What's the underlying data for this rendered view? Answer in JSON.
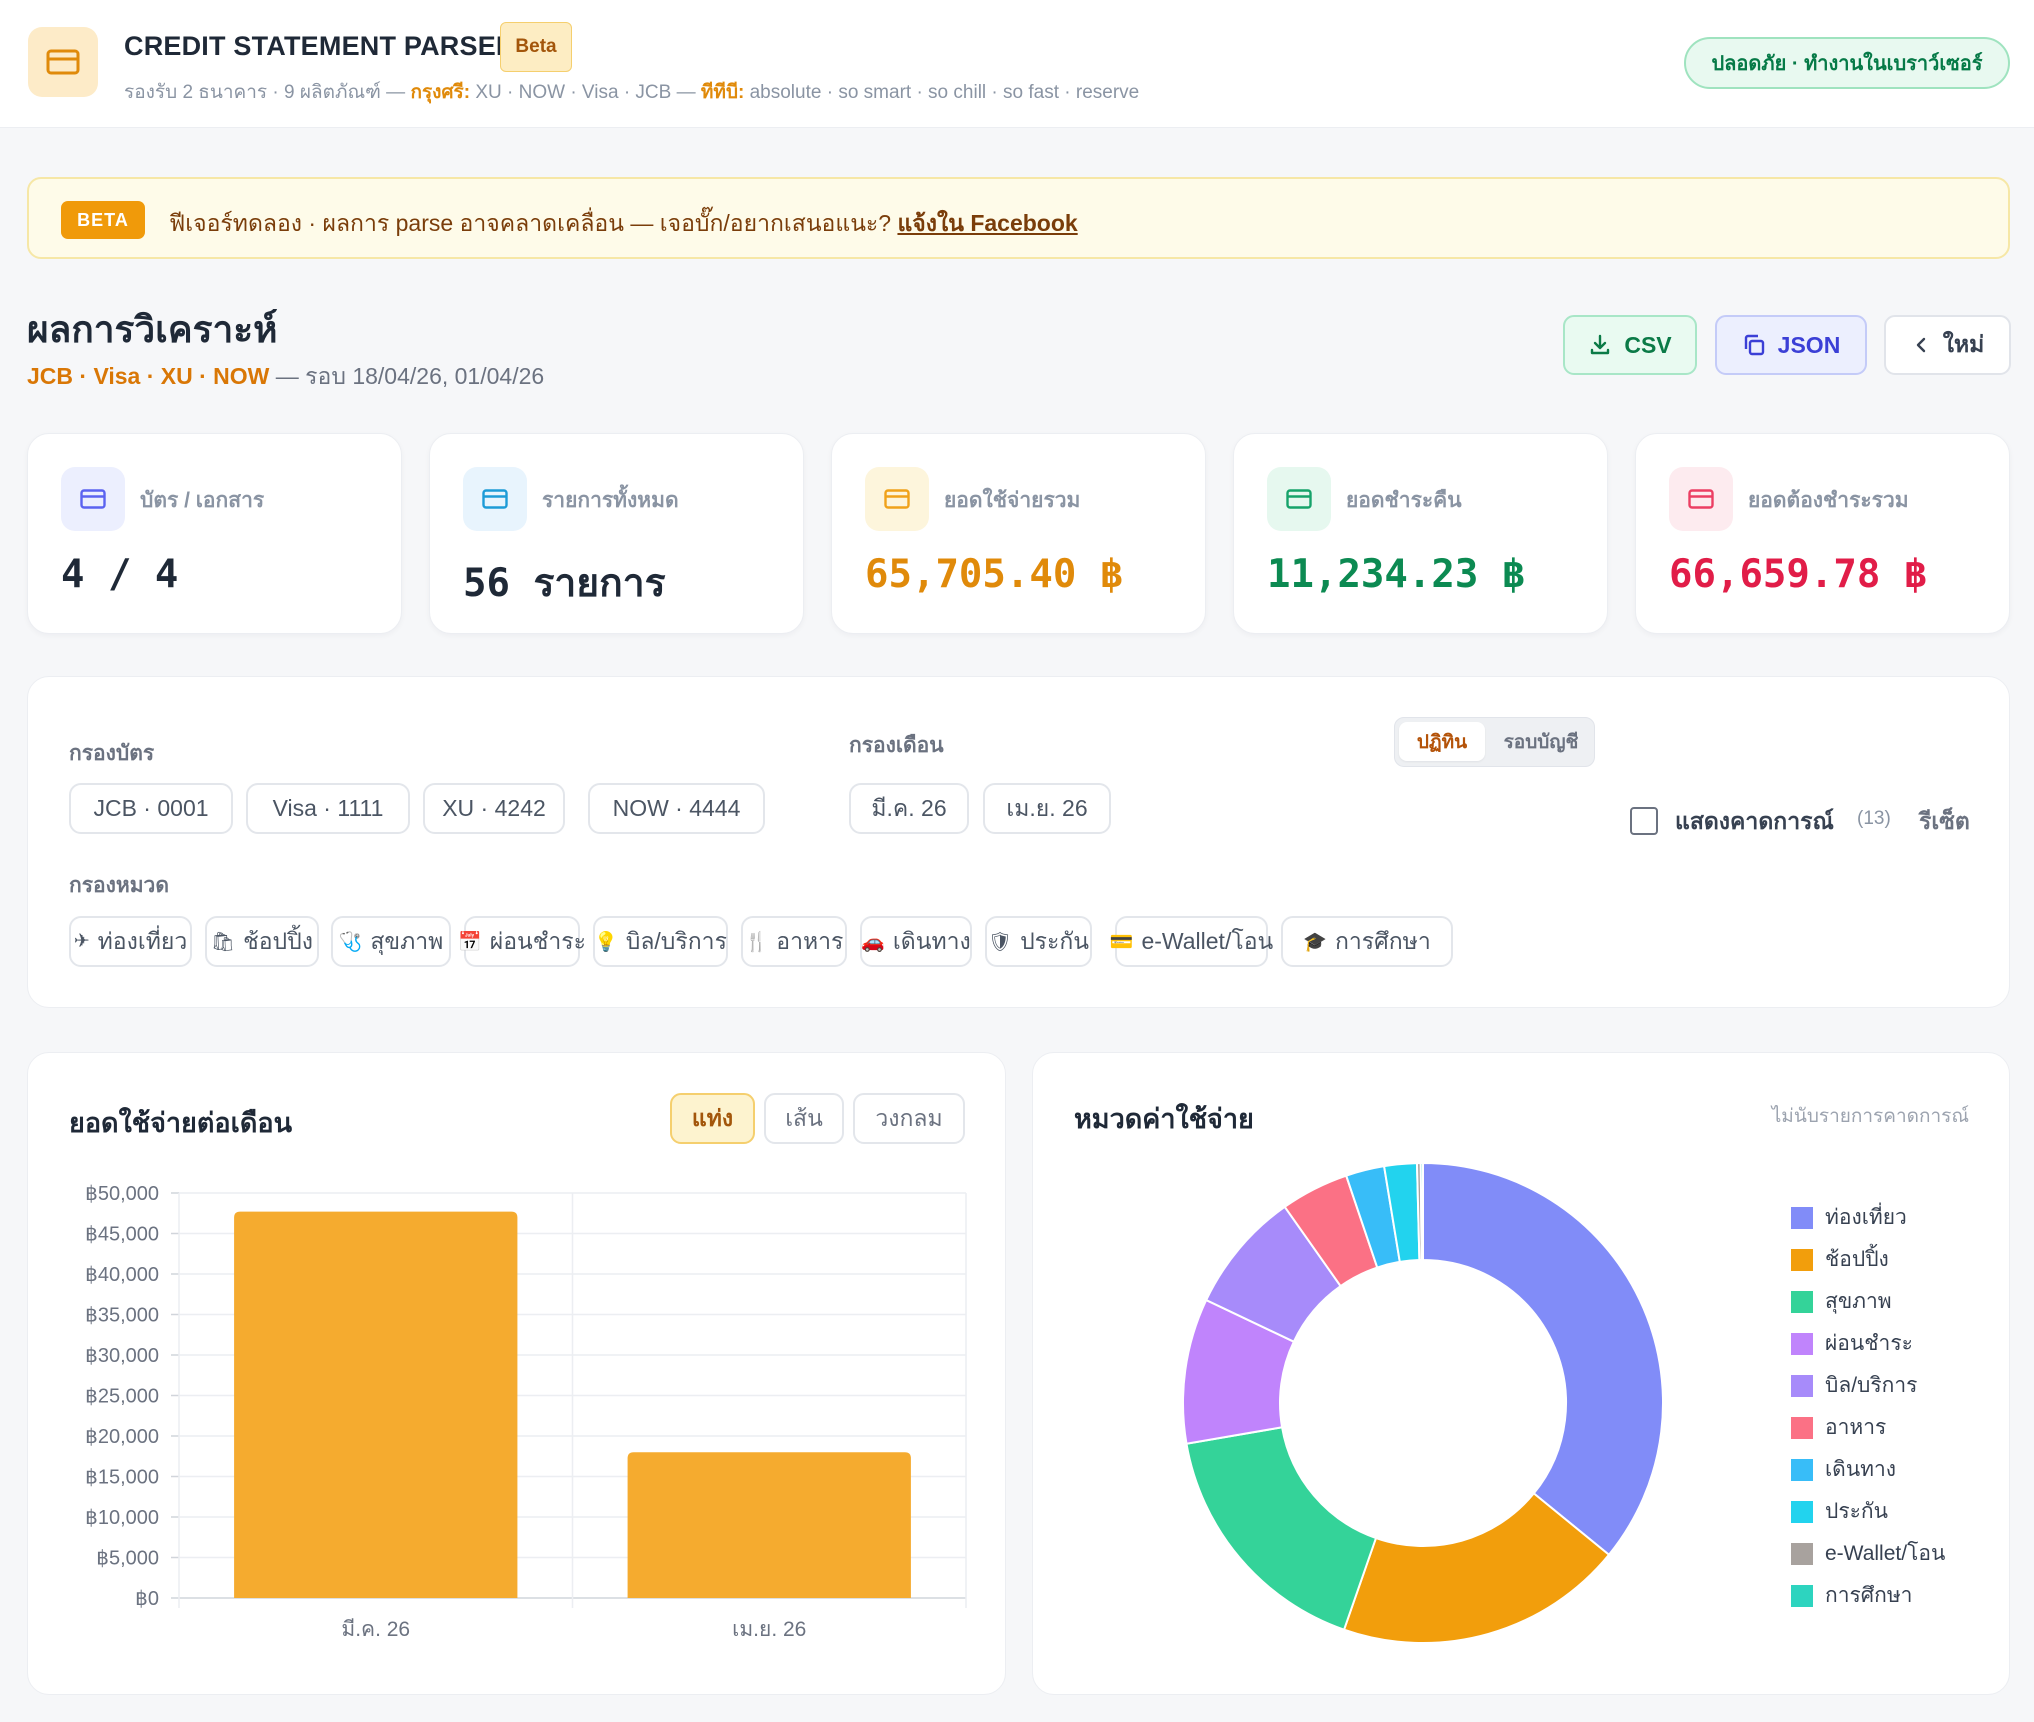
{
  "header": {
    "title": "CREDIT STATEMENT PARSER",
    "beta": "Beta",
    "subtitle_prefix": "รองรับ 2 ธนาคาร · 9 ผลิตภัณฑ์ — ",
    "bank1_name": "กรุงศรี:",
    "bank1_products": " XU · NOW · Visa · JCB — ",
    "bank2_name": "ทีทีบี:",
    "bank2_products": " absolute · so smart · so chill · so fast · reserve",
    "safe_badge": "ปลอดภัย · ทำงานในเบราว์เซอร์"
  },
  "banner": {
    "tag": "BETA",
    "text": "ฟีเจอร์ทดลอง · ผลการ parse อาจคลาดเคลื่อน — เจอบั๊ก/อยากเสนอแนะ? ",
    "link": "แจ้งใน Facebook"
  },
  "analysis": {
    "title": "ผลการวิเคราะห์",
    "cards": "JCB · Visa · XU · NOW",
    "cycle": " — รอบ 18/04/26, 01/04/26",
    "csv_label": "CSV",
    "json_label": "JSON",
    "new_label": "ใหม่"
  },
  "stats": [
    {
      "label": "บัตร / เอกสาร",
      "value": "4 / 4",
      "color": "#1f2937",
      "icon_bg": "#eceffe",
      "icon_color": "#5b63f0"
    },
    {
      "label": "รายการทั้งหมด",
      "value": "56 รายการ",
      "color": "#1f2937",
      "icon_bg": "#e8f4fd",
      "icon_color": "#1d9bd7"
    },
    {
      "label": "ยอดใช้จ่ายรวม",
      "value": "65,705.40 ฿",
      "color": "#e08a0a",
      "icon_bg": "#fdf5dc",
      "icon_color": "#f0a21a"
    },
    {
      "label": "ยอดชำระคืน",
      "value": "11,234.23 ฿",
      "color": "#0c8a52",
      "icon_bg": "#e6f8ef",
      "icon_color": "#16a36a"
    },
    {
      "label": "ยอดต้องชำระรวม",
      "value": "66,659.78 ฿",
      "color": "#e11d48",
      "icon_bg": "#fdebef",
      "icon_color": "#ec3e63"
    }
  ],
  "filters": {
    "card_label": "กรองบัตร",
    "cards": [
      "JCB · 0001",
      "Visa · 1111",
      "XU · 4242",
      "NOW · 4444"
    ],
    "month_label": "กรองเดือน",
    "months": [
      "มี.ค. 26",
      "เม.ย. 26"
    ],
    "mode_calendar": "ปฏิทิน",
    "mode_cycle": "รอบบัญชี",
    "show_forecast": "แสดงคาดการณ์",
    "forecast_count": "(13)",
    "reset": "รีเซ็ต",
    "category_label": "กรองหมวด",
    "categories": [
      {
        "icon": "✈",
        "label": "ท่องเที่ยว"
      },
      {
        "icon": "🛍",
        "label": "ช้อปปิ้ง"
      },
      {
        "icon": "🩺",
        "label": "สุขภาพ"
      },
      {
        "icon": "📅",
        "label": "ผ่อนชำระ"
      },
      {
        "icon": "💡",
        "label": "บิล/บริการ"
      },
      {
        "icon": "🍴",
        "label": "อาหาร"
      },
      {
        "icon": "🚗",
        "label": "เดินทาง"
      },
      {
        "icon": "🛡",
        "label": "ประกัน"
      },
      {
        "icon": "💳",
        "label": "e-Wallet/โอน"
      },
      {
        "icon": "🎓",
        "label": "การศึกษา"
      }
    ]
  },
  "bar_card": {
    "title": "ยอดใช้จ่ายต่อเดือน",
    "type_bar": "แท่ง",
    "type_line": "เส้น",
    "type_pie": "วงกลม"
  },
  "pie_card": {
    "title": "หมวดค่าใช้จ่าย",
    "note": "ไม่นับรายการคาดการณ์"
  },
  "chart_data": [
    {
      "type": "bar",
      "categories": [
        "มี.ค. 26",
        "เม.ย. 26"
      ],
      "values": [
        47700,
        18000
      ],
      "ylim": [
        0,
        50000
      ],
      "yticks": [
        "฿0",
        "฿5,000",
        "฿10,000",
        "฿15,000",
        "฿20,000",
        "฿25,000",
        "฿30,000",
        "฿35,000",
        "฿40,000",
        "฿45,000",
        "฿50,000"
      ],
      "color": "#f5ab2f",
      "grid": true
    },
    {
      "type": "pie",
      "donut": true,
      "labels": [
        "ท่องเที่ยว",
        "ช้อปปิ้ง",
        "สุขภาพ",
        "ผ่อนชำระ",
        "บิล/บริการ",
        "อาหาร",
        "เดินทาง",
        "ประกัน",
        "e-Wallet/โอน",
        "การศึกษา"
      ],
      "values": [
        36.0,
        19.5,
        17.0,
        9.8,
        8.2,
        4.6,
        2.6,
        2.2,
        0.25,
        0.15
      ],
      "colors": [
        "#818cf8",
        "#f29e0c",
        "#34d399",
        "#c084fc",
        "#a78bfa",
        "#fb7185",
        "#38bdf8",
        "#22d3ee",
        "#a8a29e",
        "#2dd4bf"
      ],
      "legend_position": "right"
    }
  ]
}
